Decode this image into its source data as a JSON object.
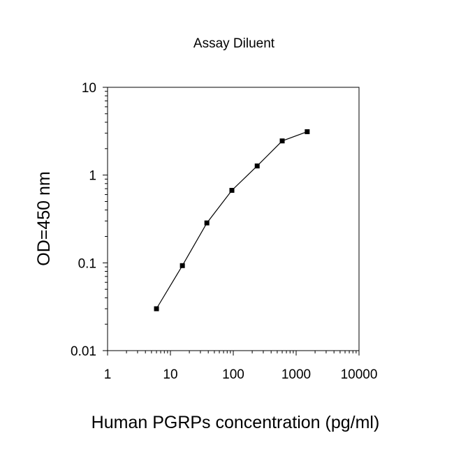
{
  "chart_data": {
    "type": "line",
    "title": "Assay Diluent",
    "xlabel": "Human PGRPs concentration (pg/ml)",
    "ylabel": "OD=450 nm",
    "x_scale": "log",
    "y_scale": "log",
    "xlim": [
      1,
      10000
    ],
    "ylim": [
      0.01,
      10
    ],
    "x_ticks": [
      {
        "value": 1,
        "label": "1"
      },
      {
        "value": 10,
        "label": "10"
      },
      {
        "value": 100,
        "label": "100"
      },
      {
        "value": 1000,
        "label": "1000"
      },
      {
        "value": 10000,
        "label": "10000"
      }
    ],
    "y_ticks": [
      {
        "value": 0.01,
        "label": "0.01"
      },
      {
        "value": 0.1,
        "label": "0.1"
      },
      {
        "value": 1,
        "label": "1"
      },
      {
        "value": 10,
        "label": "10"
      }
    ],
    "grid": false,
    "legend": "none",
    "series": [
      {
        "x": [
          6,
          15.5,
          38,
          95,
          240,
          600,
          1500
        ],
        "y": [
          0.03,
          0.093,
          0.285,
          0.67,
          1.27,
          2.45,
          3.12
        ]
      }
    ],
    "colors": {
      "line": "#000000",
      "marker": "#000000",
      "axis": "#000000"
    }
  }
}
